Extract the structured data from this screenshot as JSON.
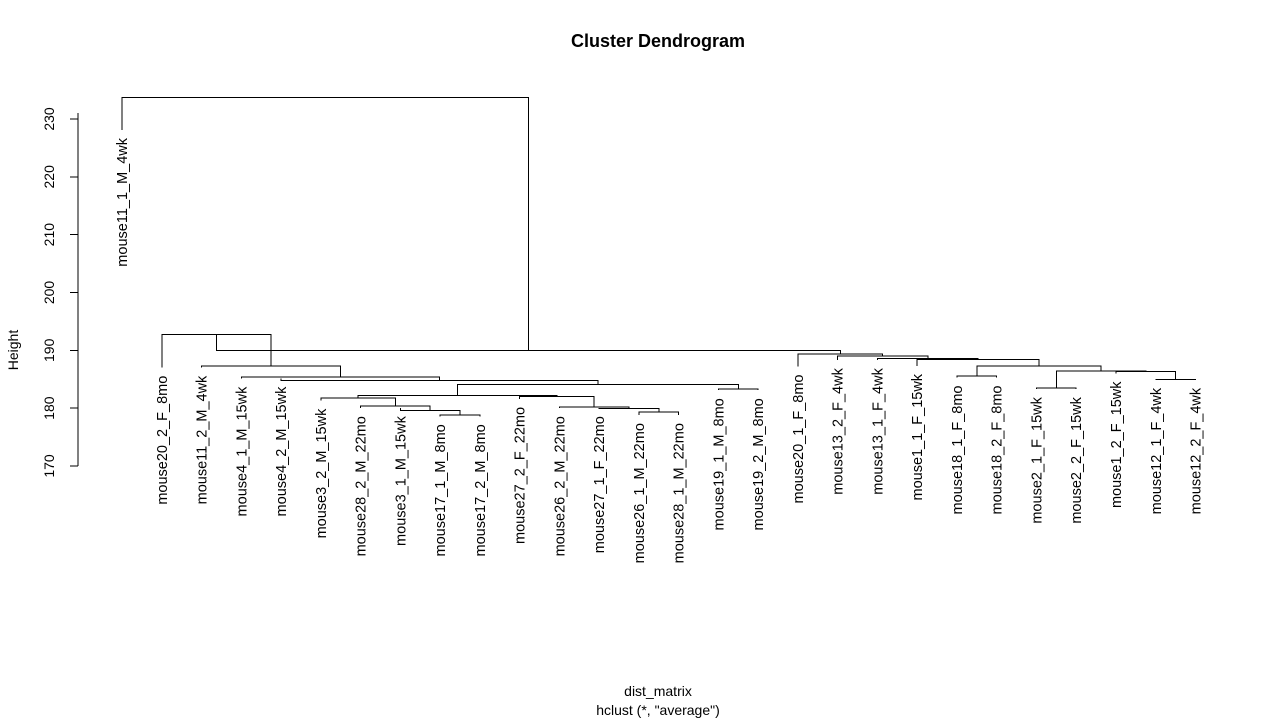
{
  "chart_data": {
    "type": "dendrogram",
    "title": "Cluster Dendrogram",
    "ylabel": "Height",
    "xlabel": "dist_matrix",
    "subtitle": "hclust (*, \"average\")",
    "yticks": [
      170,
      180,
      190,
      200,
      210,
      220,
      230
    ],
    "ylim": [
      170,
      231
    ],
    "leaves": [
      {
        "label": "mouse11_1_M_4wk"
      },
      {
        "label": "mouse20_2_F_8mo"
      },
      {
        "label": "mouse11_2_M_4wk"
      },
      {
        "label": "mouse4_1_M_15wk"
      },
      {
        "label": "mouse4_2_M_15wk"
      },
      {
        "label": "mouse3_2_M_15wk"
      },
      {
        "label": "mouse28_2_M_22mo"
      },
      {
        "label": "mouse3_1_M_15wk"
      },
      {
        "label": "mouse17_1_M_8mo"
      },
      {
        "label": "mouse17_2_M_8mo"
      },
      {
        "label": "mouse27_2_F_22mo"
      },
      {
        "label": "mouse26_2_M_22mo"
      },
      {
        "label": "mouse27_1_F_22mo"
      },
      {
        "label": "mouse26_1_M_22mo"
      },
      {
        "label": "mouse28_1_M_22mo"
      },
      {
        "label": "mouse19_1_M_8mo"
      },
      {
        "label": "mouse19_2_M_8mo"
      },
      {
        "label": "mouse20_1_F_8mo"
      },
      {
        "label": "mouse13_2_F_4wk"
      },
      {
        "label": "mouse13_1_F_4wk"
      },
      {
        "label": "mouse1_1_F_15wk"
      },
      {
        "label": "mouse18_1_F_8mo"
      },
      {
        "label": "mouse18_2_F_8mo"
      },
      {
        "label": "mouse2_1_F_15wk"
      },
      {
        "label": "mouse2_2_F_15wk"
      },
      {
        "label": "mouse1_2_F_15wk"
      },
      {
        "label": "mouse12_1_F_4wk"
      },
      {
        "label": "mouse12_2_F_4wk"
      }
    ],
    "leaf_heights": [
      228.1,
      187.0,
      187.0,
      185.1,
      185.1,
      181.3,
      180.0,
      180.0,
      178.6,
      178.6,
      181.6,
      180.0,
      180.0,
      178.8,
      178.8,
      183.1,
      183.1,
      187.2,
      188.3,
      188.3,
      187.3,
      185.3,
      185.3,
      183.3,
      183.3,
      186.0,
      184.9,
      184.9
    ],
    "merges": [
      {
        "a": "L8",
        "b": "L9",
        "height": 178.8
      },
      {
        "a": "L13",
        "b": "L14",
        "height": 179.3
      },
      {
        "a": "L7",
        "b": "M0",
        "height": 179.6
      },
      {
        "a": "L12",
        "b": "M1",
        "height": 179.9
      },
      {
        "a": "L6",
        "b": "M2",
        "height": 180.4
      },
      {
        "a": "L11",
        "b": "M3",
        "height": 180.2
      },
      {
        "a": "L5",
        "b": "M4",
        "height": 181.8
      },
      {
        "a": "L10",
        "b": "M5",
        "height": 182.0
      },
      {
        "a": "M6",
        "b": "M7",
        "height": 182.2
      },
      {
        "a": "L15",
        "b": "L16",
        "height": 183.3
      },
      {
        "a": "M8",
        "b": "M9",
        "height": 184.1
      },
      {
        "a": "L4",
        "b": "M10",
        "height": 184.8
      },
      {
        "a": "L3",
        "b": "M11",
        "height": 185.4
      },
      {
        "a": "L2",
        "b": "M12",
        "height": 187.3
      },
      {
        "a": "L1",
        "b": "M13",
        "height": 192.7
      },
      {
        "a": "L23",
        "b": "L24",
        "height": 183.5
      },
      {
        "a": "L26",
        "b": "L27",
        "height": 185.0
      },
      {
        "a": "L21",
        "b": "L22",
        "height": 185.6
      },
      {
        "a": "L25",
        "b": "M16",
        "height": 186.3
      },
      {
        "a": "M15",
        "b": "M18",
        "height": 186.4
      },
      {
        "a": "M17",
        "b": "M19",
        "height": 187.3
      },
      {
        "a": "L20",
        "b": "M20",
        "height": 188.4
      },
      {
        "a": "L19",
        "b": "M21",
        "height": 188.6
      },
      {
        "a": "L18",
        "b": "M22",
        "height": 189.0
      },
      {
        "a": "L17",
        "b": "M23",
        "height": 189.4
      },
      {
        "a": "M14",
        "b": "M24",
        "height": 190.0
      },
      {
        "a": "L0",
        "b": "M25",
        "height": 233.7
      }
    ]
  }
}
